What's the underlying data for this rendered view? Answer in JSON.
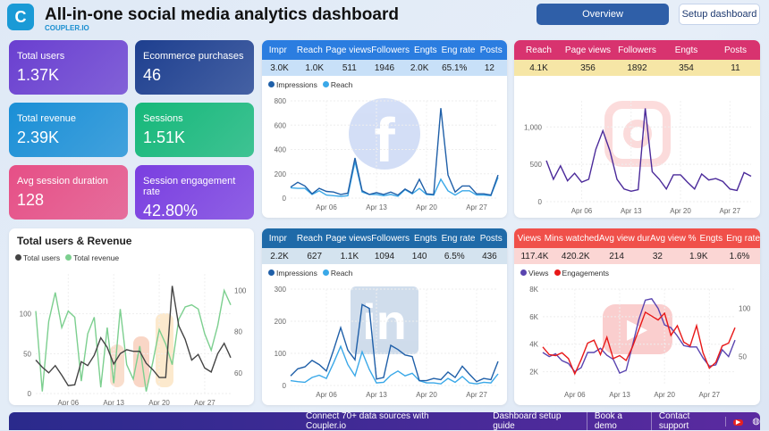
{
  "header": {
    "title": "All-in-one social media analytics dashboard",
    "brand": "COUPLER.IO",
    "overview_label": "Overview",
    "setup_label": "Setup dashboard"
  },
  "kpis": [
    {
      "label": "Total users",
      "value": "1.37K",
      "color": "#6a3fd0"
    },
    {
      "label": "Ecommerce purchases",
      "value": "46",
      "color": "#1e3f8f"
    },
    {
      "label": "Total revenue",
      "value": "2.39K",
      "color": "#1a8fd6"
    },
    {
      "label": "Sessions",
      "value": "1.51K",
      "color": "#16b87a"
    },
    {
      "label": "Avg session duration",
      "value": "128",
      "color": "#e64f86"
    },
    {
      "label": "Session engagement rate",
      "value": "42.80%",
      "color": "#7a3ee0"
    }
  ],
  "x_ticks": [
    "Apr 06",
    "Apr 13",
    "Apr 20",
    "Apr 27"
  ],
  "users_revenue": {
    "title": "Total users & Revenue",
    "legend": [
      "Total users",
      "Total revenue"
    ],
    "colors": [
      "#444444",
      "#7ccf8f"
    ],
    "y_left": [
      "0",
      "50",
      "100"
    ],
    "y_right": [
      "60",
      "80",
      "100"
    ],
    "users": [
      42,
      33,
      26,
      35,
      23,
      10,
      11,
      40,
      35,
      48,
      70,
      58,
      37,
      50,
      55,
      53,
      53,
      38,
      30,
      20,
      20,
      135,
      85,
      68,
      42,
      49,
      32,
      27,
      50,
      63,
      45
    ],
    "revenue": [
      90,
      51,
      85,
      99,
      82,
      90,
      87,
      56,
      79,
      87,
      53,
      82,
      55,
      91,
      64,
      57,
      73,
      51,
      65,
      81,
      74,
      64,
      86,
      92,
      93,
      91,
      79,
      71,
      83,
      100,
      93
    ]
  },
  "facebook": {
    "headers": [
      "Impr",
      "Reach",
      "Page views",
      "Followers",
      "Engts",
      "Eng rate",
      "Posts"
    ],
    "values": [
      "3.0K",
      "1.0K",
      "511",
      "1946",
      "2.0K",
      "65.1%",
      "12"
    ],
    "legend": [
      "Impressions",
      "Reach"
    ],
    "colors": [
      "#1f5fa8",
      "#3aa8e8"
    ],
    "y_ticks": [
      "0",
      "200",
      "400",
      "600",
      "800"
    ],
    "impressions": [
      90,
      130,
      100,
      35,
      80,
      55,
      50,
      30,
      40,
      330,
      60,
      30,
      45,
      30,
      50,
      25,
      75,
      40,
      155,
      35,
      30,
      740,
      190,
      50,
      100,
      100,
      35,
      35,
      25,
      190
    ],
    "reach": [
      85,
      80,
      80,
      30,
      60,
      25,
      20,
      15,
      20,
      300,
      50,
      30,
      30,
      20,
      30,
      15,
      70,
      35,
      80,
      30,
      25,
      155,
      60,
      25,
      60,
      60,
      25,
      25,
      20,
      170
    ]
  },
  "instagram": {
    "headers": [
      "Reach",
      "Page views",
      "Followers",
      "Engts",
      "Posts"
    ],
    "values": [
      "4.1K",
      "356",
      "1892",
      "354",
      "11"
    ],
    "colors": [
      "#4b2a9a"
    ],
    "y_ticks": [
      "0",
      "500",
      "1,000"
    ],
    "reach": [
      550,
      300,
      480,
      280,
      380,
      260,
      300,
      700,
      950,
      680,
      300,
      170,
      140,
      160,
      1250,
      400,
      300,
      170,
      360,
      360,
      260,
      170,
      370,
      290,
      310,
      270,
      170,
      150,
      390,
      340
    ]
  },
  "linkedin": {
    "headers": [
      "Impr",
      "Reach",
      "Page views",
      "Followers",
      "Engts",
      "Eng rate",
      "Posts"
    ],
    "values": [
      "2.2K",
      "627",
      "1.1K",
      "1094",
      "140",
      "6.5%",
      "436"
    ],
    "legend": [
      "Impressions",
      "Reach"
    ],
    "colors": [
      "#1f5fa8",
      "#3aa8e8"
    ],
    "y_ticks": [
      "0",
      "100",
      "200",
      "300"
    ],
    "impressions": [
      30,
      52,
      58,
      78,
      65,
      45,
      110,
      180,
      110,
      80,
      252,
      240,
      20,
      25,
      125,
      112,
      95,
      90,
      15,
      15,
      22,
      18,
      42,
      25,
      60,
      35,
      12,
      22,
      18,
      75
    ],
    "reach": [
      15,
      12,
      10,
      25,
      32,
      22,
      70,
      122,
      65,
      30,
      105,
      50,
      8,
      10,
      32,
      45,
      30,
      38,
      15,
      8,
      8,
      5,
      22,
      10,
      28,
      8,
      5,
      10,
      8,
      36
    ]
  },
  "youtube": {
    "headers": [
      "Views",
      "Mins watched",
      "Avg view dur",
      "Avg view %",
      "Engts",
      "Eng rate"
    ],
    "values": [
      "117.4K",
      "420.2K",
      "214",
      "32",
      "1.9K",
      "1.6%"
    ],
    "legend": [
      "Views",
      "Engagements"
    ],
    "colors": [
      "#5a45b0",
      "#e81818"
    ],
    "y_left": [
      "2K",
      "4K",
      "6K",
      "8K"
    ],
    "y_right": [
      "50",
      "100"
    ],
    "views": [
      3.4,
      3.1,
      3.3,
      2.8,
      2.6,
      2.0,
      2.3,
      3.4,
      3.4,
      3.7,
      3.2,
      2.9,
      1.9,
      2.1,
      3.9,
      5.8,
      7.2,
      7.3,
      6.6,
      5.4,
      5.2,
      4.6,
      3.9,
      3.8,
      3.8,
      3.0,
      2.4,
      2.5,
      3.6,
      3.1,
      4.3
    ],
    "engagements": [
      60,
      52,
      51,
      54,
      48,
      32,
      47,
      64,
      67,
      52,
      70,
      48,
      51,
      46,
      60,
      78,
      96,
      92,
      88,
      95,
      72,
      82,
      65,
      61,
      82,
      54,
      38,
      44,
      61,
      64,
      80
    ]
  },
  "footer": {
    "cta": "Connect 70+ data sources with Coupler.io",
    "links": [
      "Dashboard setup guide",
      "Book a demo",
      "Contact support"
    ]
  }
}
